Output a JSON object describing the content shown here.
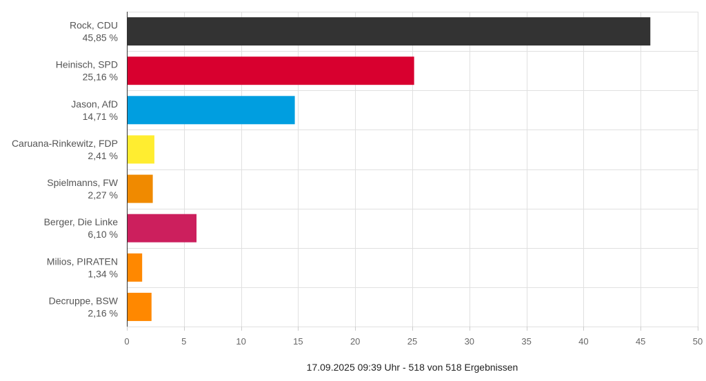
{
  "chart_data": {
    "type": "bar",
    "orientation": "horizontal",
    "categories": [
      {
        "name": "Rock, CDU",
        "pct_label": "45,85 %"
      },
      {
        "name": "Heinisch, SPD",
        "pct_label": "25,16 %"
      },
      {
        "name": "Jason, AfD",
        "pct_label": "14,71 %"
      },
      {
        "name": "Caruana-Rinkewitz, FDP",
        "pct_label": "2,41 %"
      },
      {
        "name": "Spielmanns, FW",
        "pct_label": "2,27 %"
      },
      {
        "name": "Berger, Die Linke",
        "pct_label": "6,10 %"
      },
      {
        "name": "Milios, PIRATEN",
        "pct_label": "1,34 %"
      },
      {
        "name": "Decruppe, BSW",
        "pct_label": "2,16 %"
      }
    ],
    "values": [
      45.85,
      25.16,
      14.71,
      2.41,
      2.27,
      6.1,
      1.34,
      2.16
    ],
    "colors": [
      "#333333",
      "#d8002f",
      "#009ee0",
      "#ffed30",
      "#f08a00",
      "#cc1f5d",
      "#ff8800",
      "#ff8800"
    ],
    "xlim": [
      0,
      50
    ],
    "xticks": [
      0,
      5,
      10,
      15,
      20,
      25,
      30,
      35,
      40,
      45,
      50
    ],
    "grid": true,
    "legend": "none",
    "footer": "17.09.2025 09:39 Uhr - 518 von 518 Ergebnissen"
  }
}
